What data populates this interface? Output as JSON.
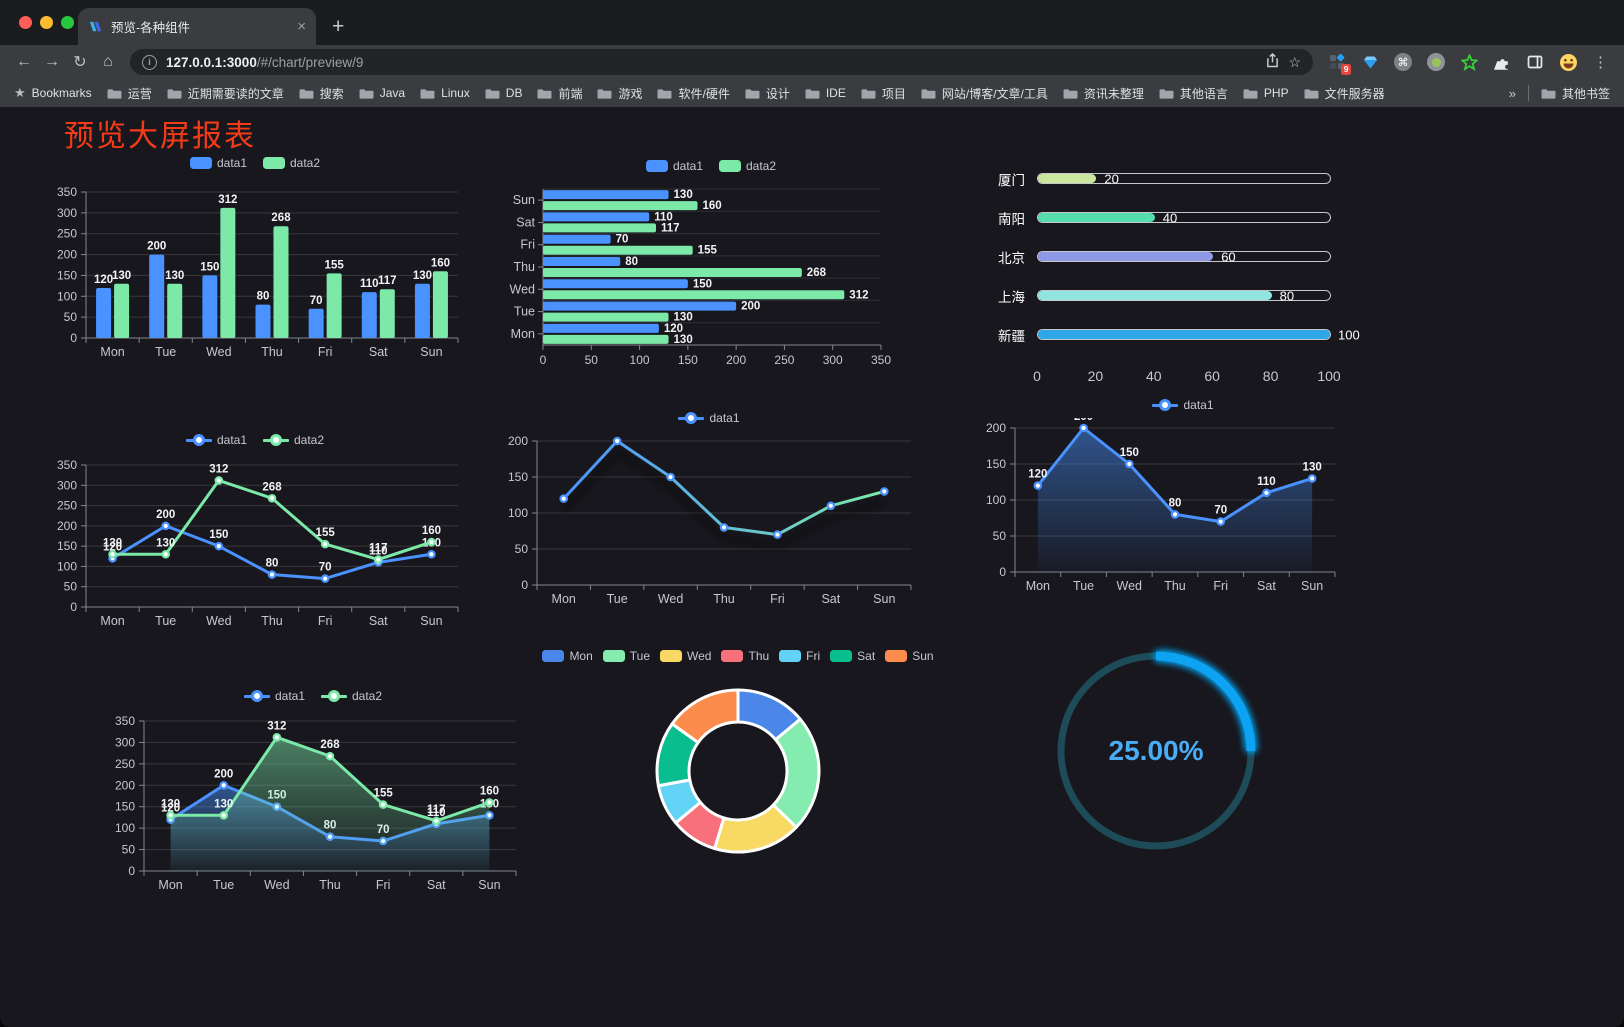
{
  "browser": {
    "tab_title": "预览-各种组件",
    "tab_close_icon": "×",
    "new_tab_icon": "+",
    "url_host": "127.0.0.1:3000",
    "url_path": "/#/chart/preview/9",
    "extension_badge": "9",
    "bookmarks_label": "Bookmarks",
    "bookmarks": [
      "运营",
      "近期需要读的文章",
      "搜索",
      "Java",
      "Linux",
      "DB",
      "前端",
      "游戏",
      "软件/硬件",
      "设计",
      "IDE",
      "项目",
      "网站/博客/文章/工具",
      "资讯未整理",
      "其他语言",
      "PHP",
      "文件服务器"
    ],
    "bookmarks_overflow": "»",
    "other_bookmarks": "其他书签"
  },
  "page": {
    "title": "预览大屏报表",
    "title_color": "#f43b17"
  },
  "colors": {
    "data1_blue": "#4992ff",
    "data2_green": "#7ce9a9",
    "axis_line": "#83878f",
    "tick_text": "#c6c8cd",
    "grid_line": "rgba(255,255,255,0.14)",
    "traffic_red": "#ff5f57",
    "traffic_yellow": "#febc2e",
    "traffic_green": "#28c840"
  },
  "chart_data": [
    {
      "id": "c1",
      "type": "bar",
      "legend_position": "top",
      "grid": true,
      "value_labels": true,
      "categories": [
        "Mon",
        "Tue",
        "Wed",
        "Thu",
        "Fri",
        "Sat",
        "Sun"
      ],
      "ylim": [
        0,
        350
      ],
      "ystep": 50,
      "series": [
        {
          "name": "data1",
          "color": "#4992ff",
          "values": [
            120,
            200,
            150,
            80,
            70,
            110,
            130
          ]
        },
        {
          "name": "data2",
          "color": "#7ce9a9",
          "values": [
            130,
            130,
            312,
            268,
            155,
            117,
            160
          ]
        }
      ]
    },
    {
      "id": "c2",
      "type": "bar-horizontal",
      "legend_position": "top",
      "grid": true,
      "value_labels": true,
      "categories": [
        "Mon",
        "Tue",
        "Wed",
        "Thu",
        "Fri",
        "Sat",
        "Sun"
      ],
      "xlim": [
        0,
        350
      ],
      "xstep": 50,
      "series": [
        {
          "name": "data1",
          "color": "#4992ff",
          "values": [
            120,
            200,
            150,
            80,
            70,
            110,
            130
          ]
        },
        {
          "name": "data2",
          "color": "#7ce9a9",
          "values": [
            130,
            130,
            312,
            268,
            155,
            117,
            160
          ]
        }
      ]
    },
    {
      "id": "c3",
      "type": "progress-bars",
      "max": 100,
      "axis_ticks": [
        0,
        20,
        40,
        60,
        80,
        100
      ],
      "rows": [
        {
          "label": "厦门",
          "value": 20,
          "color": "#cbe79d"
        },
        {
          "label": "南阳",
          "value": 40,
          "color": "#55ddab"
        },
        {
          "label": "北京",
          "value": 60,
          "color": "#8e99e8"
        },
        {
          "label": "上海",
          "value": 80,
          "color": "#90e5e0"
        },
        {
          "label": "新疆",
          "value": 100,
          "color": "#2ea7e8"
        }
      ]
    },
    {
      "id": "c4",
      "type": "line",
      "legend_position": "top",
      "grid": true,
      "value_labels": true,
      "categories": [
        "Mon",
        "Tue",
        "Wed",
        "Thu",
        "Fri",
        "Sat",
        "Sun"
      ],
      "ylim": [
        0,
        350
      ],
      "ystep": 50,
      "series": [
        {
          "name": "data1",
          "color": "#4992ff",
          "values": [
            120,
            200,
            150,
            80,
            70,
            110,
            130
          ]
        },
        {
          "name": "data2",
          "color": "#7ce9a9",
          "values": [
            130,
            130,
            312,
            268,
            155,
            117,
            160
          ]
        }
      ]
    },
    {
      "id": "c5",
      "type": "line",
      "legend_position": "top",
      "grid": true,
      "value_labels": false,
      "gradient_stroke": true,
      "shadow": true,
      "categories": [
        "Mon",
        "Tue",
        "Wed",
        "Thu",
        "Fri",
        "Sat",
        "Sun"
      ],
      "ylim": [
        0,
        200
      ],
      "ystep": 50,
      "series": [
        {
          "name": "data1",
          "color": "#4992ff",
          "color_end": "#7ce9a9",
          "values": [
            120,
            200,
            150,
            80,
            70,
            110,
            130
          ]
        }
      ]
    },
    {
      "id": "c6",
      "type": "area",
      "legend_position": "top",
      "grid": true,
      "value_labels": true,
      "categories": [
        "Mon",
        "Tue",
        "Wed",
        "Thu",
        "Fri",
        "Sat",
        "Sun"
      ],
      "ylim": [
        0,
        200
      ],
      "ystep": 50,
      "series": [
        {
          "name": "data1",
          "color": "#4992ff",
          "values": [
            120,
            200,
            150,
            80,
            70,
            110,
            130
          ]
        }
      ]
    },
    {
      "id": "c7",
      "type": "area",
      "legend_position": "top",
      "grid": true,
      "value_labels": true,
      "categories": [
        "Mon",
        "Tue",
        "Wed",
        "Thu",
        "Fri",
        "Sat",
        "Sun"
      ],
      "ylim": [
        0,
        350
      ],
      "ystep": 50,
      "series": [
        {
          "name": "data1",
          "color": "#4992ff",
          "values": [
            120,
            200,
            150,
            80,
            70,
            110,
            130
          ]
        },
        {
          "name": "data2",
          "color": "#7ce9a9",
          "values": [
            130,
            130,
            312,
            268,
            155,
            117,
            160
          ]
        }
      ]
    },
    {
      "id": "c8",
      "type": "pie",
      "donut": true,
      "legend_position": "top",
      "categories": [
        "Mon",
        "Tue",
        "Wed",
        "Thu",
        "Fri",
        "Sat",
        "Sun"
      ],
      "values": [
        120,
        200,
        150,
        80,
        70,
        110,
        130
      ],
      "colors": [
        "#4a87e8",
        "#85ecaf",
        "#f7d964",
        "#f7707b",
        "#62d3f5",
        "#09bd8e",
        "#fb8c4c"
      ]
    },
    {
      "id": "c9",
      "type": "ring",
      "value": 25,
      "label": "25.00%",
      "track_color": "#1d4b58",
      "bar_color": "#10a3f2",
      "text_color": "#4aacf4"
    }
  ]
}
